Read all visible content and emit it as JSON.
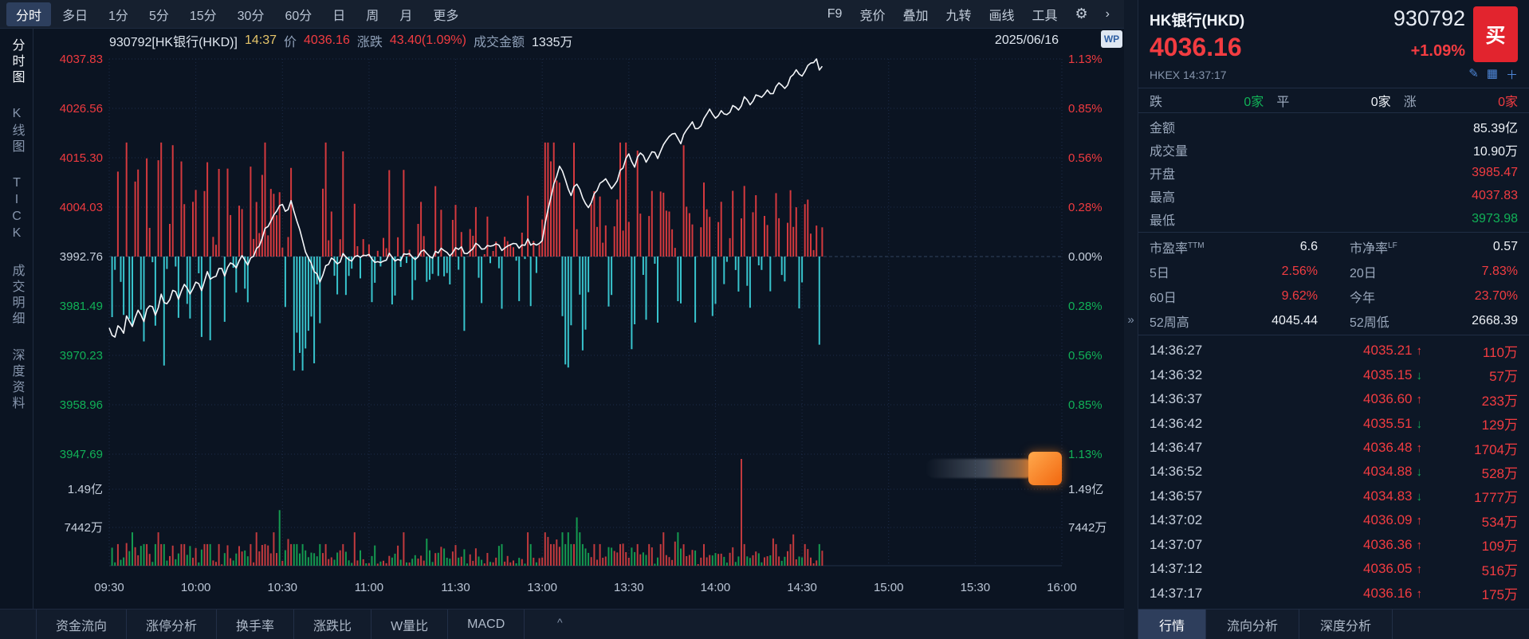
{
  "topbar": {
    "period_tabs": [
      {
        "label": "分时",
        "selected": true
      },
      {
        "label": "多日"
      },
      {
        "label": "1分"
      },
      {
        "label": "5分"
      },
      {
        "label": "15分"
      },
      {
        "label": "30分"
      },
      {
        "label": "60分"
      },
      {
        "label": "日"
      },
      {
        "label": "周"
      },
      {
        "label": "月"
      },
      {
        "label": "更多"
      }
    ],
    "tools": [
      "F9",
      "竞价",
      "叠加",
      "九转",
      "画线",
      "工具"
    ],
    "gear_icon": "⚙",
    "expand_icon": "›",
    "wp_badge": "WP"
  },
  "side_rail": {
    "items": [
      {
        "label": "分时图",
        "selected": true
      },
      {
        "label": "K线图"
      },
      {
        "label": "TICK"
      },
      {
        "label": "成交明细"
      },
      {
        "label": "深度资料"
      }
    ]
  },
  "chart_header": {
    "code_name": "930792[HK银行(HKD)]",
    "time": "14:37",
    "price_label": "价",
    "price": "4036.16",
    "change_label": "涨跌",
    "change": "43.40(1.09%)",
    "amount_label": "成交金额",
    "amount": "1335万",
    "date": "2025/06/16"
  },
  "bottom_tabs": [
    "资金流向",
    "涨停分析",
    "换手率",
    "涨跌比",
    "W量比",
    "MACD"
  ],
  "collapse_arrow": "»",
  "bottom_handle": "^",
  "right_panel": {
    "name": "HK银行(HKD)",
    "code": "930792",
    "buy_button": "买",
    "price": "4036.16",
    "change_pct": "+1.09%",
    "exchange_time": "HKEX 14:37:17",
    "icons": {
      "edit": "✎",
      "image": "▦",
      "plus": "＋"
    },
    "breadth": {
      "down_label": "跌",
      "down": "0家",
      "flat_label": "平",
      "flat": "0家",
      "up_label": "涨",
      "up": "0家"
    },
    "stats": [
      {
        "label": "金额",
        "value": "85.39亿",
        "color": "white"
      },
      {
        "label": "成交量",
        "value": "10.90万",
        "color": "white"
      },
      {
        "label": "开盘",
        "value": "3985.47",
        "color": "red"
      },
      {
        "label": "最高",
        "value": "4037.83",
        "color": "red"
      },
      {
        "label": "最低",
        "value": "3973.98",
        "color": "green"
      }
    ],
    "ratio_rows": [
      {
        "l1": "市盈率",
        "l1sup": "TTM",
        "v1": "6.6",
        "c1": "white",
        "l2": "市净率",
        "l2sup": "LF",
        "v2": "0.57",
        "c2": "white"
      },
      {
        "l1": "5日",
        "v1": "2.56%",
        "c1": "red",
        "l2": "20日",
        "v2": "7.83%",
        "c2": "red"
      },
      {
        "l1": "60日",
        "v1": "9.62%",
        "c1": "red",
        "l2": "今年",
        "v2": "23.70%",
        "c2": "red"
      },
      {
        "l1": "52周高",
        "v1": "4045.44",
        "c1": "white",
        "l2": "52周低",
        "v2": "2668.39",
        "c2": "white"
      }
    ],
    "arrow_up": "↑",
    "arrow_down": "↓",
    "ticks": [
      {
        "time": "14:36:27",
        "price": "4035.21",
        "dir": "up",
        "vol": "110万"
      },
      {
        "time": "14:36:32",
        "price": "4035.15",
        "dir": "down",
        "vol": "57万"
      },
      {
        "time": "14:36:37",
        "price": "4036.60",
        "dir": "up",
        "vol": "233万"
      },
      {
        "time": "14:36:42",
        "price": "4035.51",
        "dir": "down",
        "vol": "129万"
      },
      {
        "time": "14:36:47",
        "price": "4036.48",
        "dir": "up",
        "vol": "1704万"
      },
      {
        "time": "14:36:52",
        "price": "4034.88",
        "dir": "down",
        "vol": "528万"
      },
      {
        "time": "14:36:57",
        "price": "4034.83",
        "dir": "down",
        "vol": "1777万"
      },
      {
        "time": "14:37:02",
        "price": "4036.09",
        "dir": "up",
        "vol": "534万"
      },
      {
        "time": "14:37:07",
        "price": "4036.36",
        "dir": "up",
        "vol": "109万"
      },
      {
        "time": "14:37:12",
        "price": "4036.05",
        "dir": "up",
        "vol": "516万"
      },
      {
        "time": "14:37:17",
        "price": "4036.16",
        "dir": "up",
        "vol": "175万"
      }
    ],
    "tabs": [
      {
        "label": "行情",
        "selected": true
      },
      {
        "label": "流向分析"
      },
      {
        "label": "深度分析"
      }
    ]
  },
  "chart_data": {
    "type": "line",
    "title": "HK银行(HKD) 930792 分时图",
    "prev_close": 3992.76,
    "open": 3985.47,
    "day_high": 4037.83,
    "day_low": 3973.98,
    "last_price": 4036.16,
    "last_minute": 247,
    "session_minutes": 330,
    "y_axis_price": [
      4037.83,
      4026.56,
      4015.3,
      4004.03,
      3992.76,
      3981.49,
      3970.23,
      3958.96,
      3947.69
    ],
    "y_axis_pct": [
      "1.13%",
      "0.85%",
      "0.56%",
      "0.28%",
      "0.00%",
      "0.28%",
      "0.56%",
      "0.85%",
      "1.13%"
    ],
    "x_ticks": [
      "09:30",
      "10:00",
      "10:30",
      "11:00",
      "11:30",
      "13:00",
      "13:30",
      "14:00",
      "14:30",
      "15:00",
      "15:30",
      "16:00"
    ],
    "volume_axis_labels": [
      "1.49亿",
      "7442万"
    ],
    "volume_scale_wan": {
      "full": 14884,
      "half": 7442
    },
    "price_points": [
      [
        0,
        3976.5
      ],
      [
        1,
        3974.8
      ],
      [
        2,
        3974.0
      ],
      [
        3,
        3976.8
      ],
      [
        5,
        3975.2
      ],
      [
        6,
        3978.6
      ],
      [
        8,
        3976.4
      ],
      [
        10,
        3980.2
      ],
      [
        12,
        3978.3
      ],
      [
        14,
        3982.0
      ],
      [
        16,
        3979.8
      ],
      [
        18,
        3983.6
      ],
      [
        20,
        3981.7
      ],
      [
        22,
        3985.2
      ],
      [
        24,
        3983.4
      ],
      [
        26,
        3986.3
      ],
      [
        28,
        3984.8
      ],
      [
        30,
        3987.2
      ],
      [
        32,
        3985.6
      ],
      [
        34,
        3989.0
      ],
      [
        36,
        3987.4
      ],
      [
        38,
        3990.3
      ],
      [
        40,
        3988.8
      ],
      [
        42,
        3991.6
      ],
      [
        44,
        3990.2
      ],
      [
        46,
        3992.8
      ],
      [
        48,
        3991.2
      ],
      [
        50,
        3993.4
      ],
      [
        52,
        3995.8
      ],
      [
        54,
        3998.6
      ],
      [
        56,
        4001.4
      ],
      [
        58,
        4003.2
      ],
      [
        60,
        4004.6
      ],
      [
        61,
        4002.8
      ],
      [
        63,
        4005.1
      ],
      [
        65,
        4000.6
      ],
      [
        67,
        3996.2
      ],
      [
        69,
        3992.4
      ],
      [
        71,
        3989.0
      ],
      [
        73,
        3987.6
      ],
      [
        75,
        3990.4
      ],
      [
        77,
        3992.2
      ],
      [
        79,
        3990.6
      ],
      [
        81,
        3992.9
      ],
      [
        83,
        3991.4
      ],
      [
        85,
        3993.3
      ],
      [
        87,
        3992.0
      ],
      [
        89,
        3993.6
      ],
      [
        91,
        3992.2
      ],
      [
        94,
        3990.8
      ],
      [
        97,
        3993.1
      ],
      [
        100,
        3991.6
      ],
      [
        103,
        3993.8
      ],
      [
        106,
        3992.3
      ],
      [
        109,
        3994.2
      ],
      [
        112,
        3992.9
      ],
      [
        115,
        3994.6
      ],
      [
        118,
        3993.2
      ],
      [
        121,
        3995.0
      ],
      [
        124,
        3993.6
      ],
      [
        127,
        3995.3
      ],
      [
        130,
        3994.1
      ],
      [
        133,
        3995.7
      ],
      [
        136,
        3994.4
      ],
      [
        139,
        3996.1
      ],
      [
        142,
        3994.9
      ],
      [
        145,
        3996.3
      ],
      [
        148,
        3995.4
      ],
      [
        150,
        3996.6
      ],
      [
        151,
        4000.5
      ],
      [
        153,
        4006.8
      ],
      [
        156,
        4013.6
      ],
      [
        158,
        4010.4
      ],
      [
        160,
        4007.2
      ],
      [
        162,
        4009.6
      ],
      [
        164,
        4006.3
      ],
      [
        166,
        4004.4
      ],
      [
        168,
        4006.8
      ],
      [
        170,
        4009.2
      ],
      [
        172,
        4010.8
      ],
      [
        174,
        4007.9
      ],
      [
        176,
        4010.6
      ],
      [
        178,
        4013.2
      ],
      [
        180,
        4016.2
      ],
      [
        182,
        4013.8
      ],
      [
        184,
        4016.6
      ],
      [
        186,
        4014.3
      ],
      [
        188,
        4016.9
      ],
      [
        190,
        4015.1
      ],
      [
        192,
        4018.2
      ],
      [
        194,
        4019.6
      ],
      [
        196,
        4020.8
      ],
      [
        198,
        4018.9
      ],
      [
        200,
        4021.6
      ],
      [
        202,
        4023.2
      ],
      [
        204,
        4021.4
      ],
      [
        206,
        4024.2
      ],
      [
        208,
        4025.8
      ],
      [
        210,
        4023.9
      ],
      [
        212,
        4026.6
      ],
      [
        214,
        4024.8
      ],
      [
        216,
        4027.6
      ],
      [
        218,
        4026.1
      ],
      [
        220,
        4028.8
      ],
      [
        222,
        4027.2
      ],
      [
        224,
        4030.2
      ],
      [
        226,
        4028.6
      ],
      [
        228,
        4031.2
      ],
      [
        230,
        4029.6
      ],
      [
        232,
        4032.6
      ],
      [
        234,
        4031.1
      ],
      [
        236,
        4033.8
      ],
      [
        238,
        4035.2
      ],
      [
        240,
        4033.6
      ],
      [
        242,
        4036.2
      ],
      [
        244,
        4037.4
      ],
      [
        245,
        4037.83
      ],
      [
        246,
        4035.3
      ],
      [
        247,
        4036.16
      ]
    ],
    "volume_spikes": [
      {
        "m": 6,
        "v": 4400,
        "dir": "up"
      },
      {
        "m": 9,
        "v": 3600,
        "dir": "up"
      },
      {
        "m": 22,
        "v": 3900,
        "dir": "up"
      },
      {
        "m": 59,
        "v": 10800,
        "dir": "down"
      },
      {
        "m": 62,
        "v": 5200,
        "dir": "up"
      },
      {
        "m": 87,
        "v": 3000,
        "dir": "down"
      },
      {
        "m": 152,
        "v": 5600,
        "dir": "up"
      },
      {
        "m": 155,
        "v": 5100,
        "dir": "up"
      },
      {
        "m": 162,
        "v": 9400,
        "dir": "down"
      },
      {
        "m": 178,
        "v": 4300,
        "dir": "up"
      },
      {
        "m": 196,
        "v": 4700,
        "dir": "up"
      },
      {
        "m": 219,
        "v": 22000,
        "dir": "up"
      },
      {
        "m": 230,
        "v": 5300,
        "dir": "up"
      },
      {
        "m": 241,
        "v": 4200,
        "dir": "up"
      }
    ],
    "bars_note": "momentum bars around prev-close line derived from per-minute price delta"
  }
}
